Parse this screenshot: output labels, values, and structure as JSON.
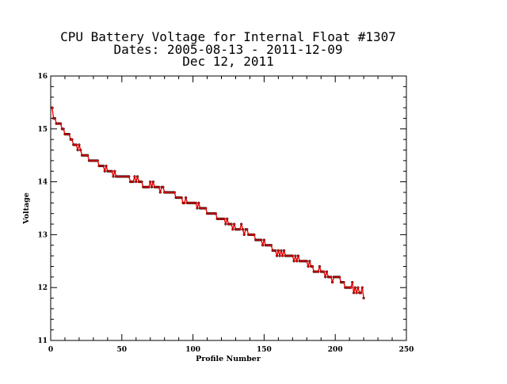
{
  "chart_data": {
    "type": "line",
    "title_lines": [
      "CPU Battery Voltage for Internal Float #1307",
      "Dates:  2005-08-13 -  2011-12-09",
      "Dec 12, 2011"
    ],
    "xlabel": "Profile Number",
    "ylabel": "Voltage",
    "xlim": [
      0,
      250
    ],
    "ylim": [
      11,
      16
    ],
    "x_ticks": [
      0,
      50,
      100,
      150,
      200,
      250
    ],
    "y_ticks": [
      11,
      12,
      13,
      14,
      15,
      16
    ],
    "grid": false,
    "series": [
      {
        "color": "#ff0000",
        "marker_color": "#000000",
        "x": [
          1,
          2,
          3,
          4,
          5,
          6,
          7,
          8,
          9,
          10,
          11,
          12,
          13,
          14,
          15,
          16,
          17,
          18,
          19,
          20,
          21,
          22,
          23,
          24,
          25,
          26,
          27,
          28,
          29,
          30,
          31,
          32,
          33,
          34,
          35,
          36,
          37,
          38,
          39,
          40,
          41,
          42,
          43,
          44,
          45,
          46,
          47,
          48,
          49,
          50,
          51,
          52,
          53,
          54,
          55,
          56,
          57,
          58,
          59,
          60,
          61,
          62,
          63,
          64,
          65,
          66,
          67,
          68,
          69,
          70,
          71,
          72,
          73,
          74,
          75,
          76,
          77,
          78,
          79,
          80,
          81,
          82,
          83,
          84,
          85,
          86,
          87,
          88,
          89,
          90,
          91,
          92,
          93,
          94,
          95,
          96,
          97,
          98,
          99,
          100,
          101,
          102,
          103,
          104,
          105,
          106,
          107,
          108,
          109,
          110,
          111,
          112,
          113,
          114,
          115,
          116,
          117,
          118,
          119,
          120,
          121,
          122,
          123,
          124,
          125,
          126,
          127,
          128,
          129,
          130,
          131,
          132,
          133,
          134,
          135,
          136,
          137,
          138,
          139,
          140,
          141,
          142,
          143,
          144,
          145,
          146,
          147,
          148,
          149,
          150,
          151,
          152,
          153,
          154,
          155,
          156,
          157,
          158,
          159,
          160,
          161,
          162,
          163,
          164,
          165,
          166,
          167,
          168,
          169,
          170,
          171,
          172,
          173,
          174,
          175,
          176,
          177,
          178,
          179,
          180,
          181,
          182,
          183,
          184,
          185,
          186,
          187,
          188,
          189,
          190,
          191,
          192,
          193,
          194,
          195,
          196,
          197,
          198,
          199,
          200,
          201,
          202,
          203,
          204,
          205,
          206,
          207,
          208,
          209,
          210,
          211,
          212,
          213,
          214,
          215,
          216,
          217,
          218,
          219,
          220
        ],
        "y": [
          15.4,
          15.2,
          15.2,
          15.1,
          15.1,
          15.1,
          15.1,
          15.0,
          15.0,
          14.9,
          14.9,
          14.9,
          14.9,
          14.8,
          14.8,
          14.7,
          14.7,
          14.7,
          14.6,
          14.7,
          14.6,
          14.5,
          14.5,
          14.5,
          14.5,
          14.5,
          14.4,
          14.4,
          14.4,
          14.4,
          14.4,
          14.4,
          14.4,
          14.3,
          14.3,
          14.3,
          14.3,
          14.2,
          14.3,
          14.2,
          14.2,
          14.2,
          14.2,
          14.1,
          14.2,
          14.1,
          14.1,
          14.1,
          14.1,
          14.1,
          14.1,
          14.1,
          14.1,
          14.1,
          14.1,
          14.0,
          14.0,
          14.0,
          14.1,
          14.0,
          14.1,
          14.0,
          14.0,
          14.0,
          13.9,
          13.9,
          13.9,
          13.9,
          13.9,
          14.0,
          13.9,
          14.0,
          13.9,
          13.9,
          13.9,
          13.9,
          13.8,
          13.9,
          13.9,
          13.8,
          13.8,
          13.8,
          13.8,
          13.8,
          13.8,
          13.8,
          13.8,
          13.7,
          13.7,
          13.7,
          13.7,
          13.7,
          13.6,
          13.6,
          13.7,
          13.6,
          13.6,
          13.6,
          13.6,
          13.6,
          13.6,
          13.6,
          13.5,
          13.6,
          13.5,
          13.5,
          13.5,
          13.5,
          13.5,
          13.4,
          13.4,
          13.4,
          13.4,
          13.4,
          13.4,
          13.4,
          13.3,
          13.3,
          13.3,
          13.3,
          13.3,
          13.3,
          13.2,
          13.3,
          13.2,
          13.2,
          13.2,
          13.1,
          13.2,
          13.1,
          13.1,
          13.1,
          13.1,
          13.2,
          13.1,
          13.0,
          13.1,
          13.1,
          13.0,
          13.0,
          13.0,
          13.0,
          13.0,
          12.9,
          12.9,
          12.9,
          12.9,
          12.9,
          12.8,
          12.9,
          12.8,
          12.8,
          12.8,
          12.8,
          12.8,
          12.7,
          12.7,
          12.7,
          12.6,
          12.7,
          12.6,
          12.7,
          12.6,
          12.7,
          12.6,
          12.6,
          12.6,
          12.6,
          12.6,
          12.6,
          12.5,
          12.6,
          12.5,
          12.6,
          12.5,
          12.5,
          12.5,
          12.5,
          12.5,
          12.5,
          12.4,
          12.5,
          12.4,
          12.4,
          12.3,
          12.3,
          12.3,
          12.3,
          12.4,
          12.3,
          12.3,
          12.3,
          12.2,
          12.3,
          12.2,
          12.2,
          12.2,
          12.1,
          12.2,
          12.2,
          12.2,
          12.2,
          12.2,
          12.1,
          12.1,
          12.1,
          12.0,
          12.0,
          12.0,
          12.0,
          12.0,
          12.1,
          11.9,
          12.0,
          11.9,
          12.0,
          11.9,
          11.9,
          12.0,
          11.8
        ]
      }
    ]
  }
}
